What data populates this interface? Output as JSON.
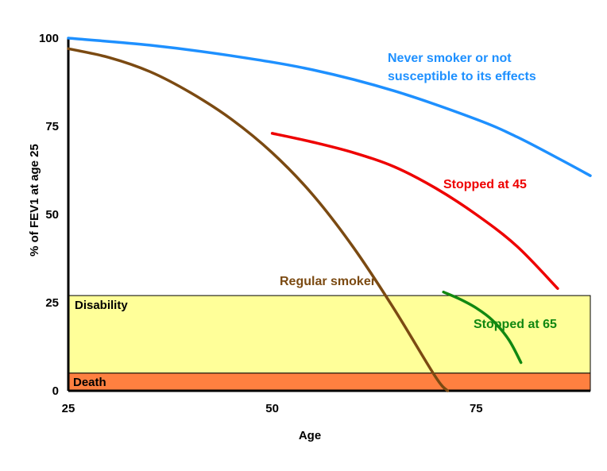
{
  "chart_data": {
    "type": "line",
    "title": "",
    "xlabel": "Age",
    "ylabel": "% of FEV1 at age 25",
    "xlim": [
      25,
      89
    ],
    "ylim": [
      0,
      100
    ],
    "x_ticks": [
      "25",
      "50",
      "75"
    ],
    "y_ticks": [
      "0",
      "25",
      "50",
      "75",
      "100"
    ],
    "zones": [
      {
        "name": "Disability",
        "y_range": [
          5,
          27
        ],
        "color": "#ffff99"
      },
      {
        "name": "Death",
        "y_range": [
          0,
          5
        ],
        "color": "#ff8040"
      }
    ],
    "series": [
      {
        "name": "Never smoker or not susceptible to its effects",
        "label_lines": [
          "Never smoker or not",
          "susceptible to its effects"
        ],
        "color": "#1e90ff",
        "x": [
          25,
          35,
          45,
          55,
          65,
          75,
          80,
          85,
          89
        ],
        "y": [
          100,
          98,
          95,
          91,
          85,
          77,
          72,
          66,
          61
        ]
      },
      {
        "name": "Regular smoker",
        "color": "#7b4a12",
        "x": [
          25,
          30,
          35,
          40,
          45,
          50,
          55,
          60,
          65,
          70,
          71.5
        ],
        "y": [
          97,
          94.5,
          90.5,
          84.5,
          77,
          67.5,
          55.5,
          40.5,
          23,
          4,
          0
        ]
      },
      {
        "name": "Stopped at 45",
        "color": "#ee0000",
        "x": [
          50,
          55,
          60,
          65,
          70,
          75,
          80,
          85
        ],
        "y": [
          73,
          70.5,
          67.5,
          63.5,
          57.5,
          50,
          41,
          29
        ]
      },
      {
        "name": "Stopped at 65",
        "color": "#118811",
        "x": [
          71,
          73,
          75,
          77,
          79,
          80.5
        ],
        "y": [
          28,
          26,
          23.5,
          20,
          14.5,
          8
        ]
      }
    ]
  }
}
